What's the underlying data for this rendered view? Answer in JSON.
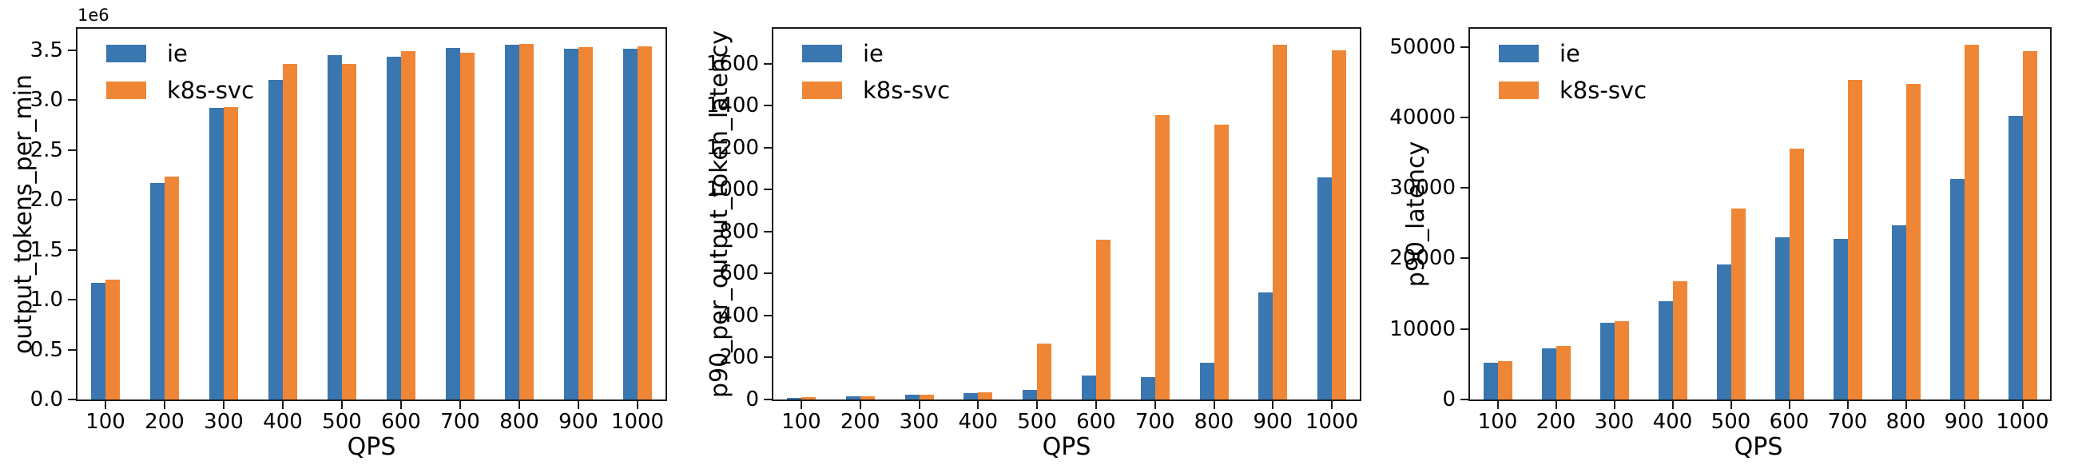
{
  "figure": {
    "background": "#ffffff",
    "series_colors": {
      "ie": "#3a76af",
      "k8s-svc": "#ef8636"
    }
  },
  "chart_data": [
    {
      "type": "bar",
      "ylabel": "output_tokens_per_min",
      "xlabel": "QPS",
      "offset_text": "1e6",
      "legend_position": "upper left",
      "grid": false,
      "categories": [
        "100",
        "200",
        "300",
        "400",
        "500",
        "600",
        "700",
        "800",
        "900",
        "1000"
      ],
      "series": [
        {
          "name": "ie",
          "color": "#3a76af",
          "values": [
            1170000,
            2170000,
            2920000,
            3200000,
            3450000,
            3430000,
            3520000,
            3550000,
            3510000,
            3510000
          ]
        },
        {
          "name": "k8s-svc",
          "color": "#ef8636",
          "values": [
            1200000,
            2230000,
            2930000,
            3360000,
            3360000,
            3490000,
            3470000,
            3560000,
            3530000,
            3540000
          ]
        }
      ],
      "ylim": [
        0,
        3730000
      ],
      "yticks": {
        "values": [
          0,
          500000,
          1000000,
          1500000,
          2000000,
          2500000,
          3000000,
          3500000
        ],
        "labels": [
          "0.0",
          "0.5",
          "1.0",
          "1.5",
          "2.0",
          "2.5",
          "3.0",
          "3.5"
        ]
      }
    },
    {
      "type": "bar",
      "ylabel": "p90_per_output_token_latency",
      "xlabel": "QPS",
      "legend_position": "upper left",
      "grid": false,
      "categories": [
        "100",
        "200",
        "300",
        "400",
        "500",
        "600",
        "700",
        "800",
        "900",
        "1000"
      ],
      "series": [
        {
          "name": "ie",
          "color": "#3a76af",
          "values": [
            8,
            15,
            22,
            30,
            46,
            115,
            105,
            175,
            512,
            1058
          ]
        },
        {
          "name": "k8s-svc",
          "color": "#ef8636",
          "values": [
            10,
            16,
            22,
            36,
            268,
            760,
            1355,
            1312,
            1690,
            1663
          ]
        }
      ],
      "ylim": [
        0,
        1775
      ],
      "yticks": {
        "values": [
          0,
          200,
          400,
          600,
          800,
          1000,
          1200,
          1400,
          1600
        ],
        "labels": [
          "0",
          "200",
          "400",
          "600",
          "800",
          "1000",
          "1200",
          "1400",
          "1600"
        ]
      }
    },
    {
      "type": "bar",
      "ylabel": "p90_latency",
      "xlabel": "QPS",
      "legend_position": "upper left",
      "grid": false,
      "categories": [
        "100",
        "200",
        "300",
        "400",
        "500",
        "600",
        "700",
        "800",
        "900",
        "1000"
      ],
      "series": [
        {
          "name": "ie",
          "color": "#3a76af",
          "values": [
            5200,
            7300,
            10900,
            13900,
            19200,
            23000,
            22800,
            24700,
            31300,
            40200
          ]
        },
        {
          "name": "k8s-svc",
          "color": "#ef8636",
          "values": [
            5400,
            7600,
            11100,
            16800,
            27100,
            35600,
            45300,
            44800,
            50300,
            49400
          ]
        }
      ],
      "ylim": [
        0,
        52800
      ],
      "yticks": {
        "values": [
          0,
          10000,
          20000,
          30000,
          40000,
          50000
        ],
        "labels": [
          "0",
          "10000",
          "20000",
          "30000",
          "40000",
          "50000"
        ]
      }
    }
  ]
}
